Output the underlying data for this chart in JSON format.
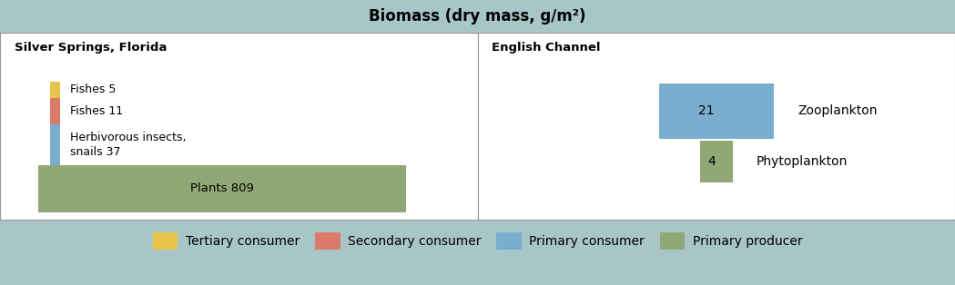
{
  "title": "Biomass (dry mass, g/m²)",
  "title_bg_color": "#a8c5c8",
  "panel_bg_color": "#ffffff",
  "border_color": "#999999",
  "left_panel_title": "Silver Springs, Florida",
  "right_panel_title": "English Channel",
  "colors": {
    "tertiary": "#e8c44a",
    "secondary": "#d97a6a",
    "primary_consumer": "#7aaecf",
    "primary_producer": "#8fa876"
  },
  "legend": [
    {
      "label": "Tertiary consumer",
      "color_key": "tertiary"
    },
    {
      "label": "Secondary consumer",
      "color_key": "secondary"
    },
    {
      "label": "Primary consumer",
      "color_key": "primary_consumer"
    },
    {
      "label": "Primary producer",
      "color_key": "primary_producer"
    }
  ]
}
